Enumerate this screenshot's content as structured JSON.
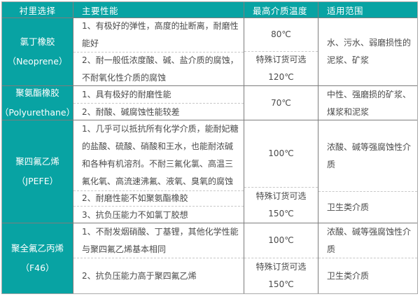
{
  "colors": {
    "accent_teal": "#08a3a3",
    "grid_line": "#7d7d7d",
    "dashed_line": "#c8c8c8",
    "body_text": "#4a4a4a"
  },
  "table": {
    "headers": [
      "衬里选择",
      "主要性能",
      "最高介质温度",
      "适用范围"
    ],
    "rows": [
      {
        "material": {
          "name": "氯丁橡胶",
          "en": "（Neoprene）"
        },
        "performance": [
          {
            "lines": [
              "1、有极好的弹性，高度的扯断离，耐磨性",
              "能好"
            ]
          },
          {
            "lines": [
              "2、耐一般低浓度酸、碱、盐介质的腐蚀，",
              "不耐氧化性介质的腐蚀"
            ]
          }
        ],
        "temperature": [
          {
            "lines": [
              "80℃"
            ]
          },
          {
            "lines": [
              "特殊订货可选",
              "120℃"
            ]
          }
        ],
        "scope": [
          {
            "lines": [
              "水、污水、弱磨损性的",
              "泥浆、矿浆"
            ]
          }
        ]
      },
      {
        "material": {
          "name": "聚氨酯橡胶",
          "en": "（Polyurethane）"
        },
        "performance": [
          {
            "lines": [
              "1、具有极好的耐磨性能"
            ]
          },
          {
            "lines": [
              "2、耐酸、碱腐蚀性能较差"
            ]
          }
        ],
        "temperature": [
          {
            "lines": [
              "70℃"
            ]
          }
        ],
        "scope": [
          {
            "lines": [
              "中性、强磨损的矿浆、",
              "煤浆和泥浆"
            ]
          }
        ]
      },
      {
        "material": {
          "name": "聚四氟乙烯",
          "en": "（JPEFE）"
        },
        "performance": [
          {
            "lines": [
              "1、几乎可以抵抗所有化学介质，能耐妃糖",
              "的盐酸、硫酸、硝酸和王水，也能耐浓碱",
              "和各种有机溶剂。不耐三氟化氯、高温三",
              "氟化氧、高流速沸氟、液氧、臭氧的腐蚀"
            ]
          },
          {
            "lines": [
              "2、耐磨性能不如聚氨酯橡胶"
            ]
          },
          {
            "lines": [
              "3、抗负压能力不如氯丁胶想"
            ]
          }
        ],
        "temperature": [
          {
            "lines": [
              "100℃"
            ]
          },
          {
            "lines": [
              "特殊订货可选",
              "150℃"
            ]
          }
        ],
        "scope": [
          {
            "lines": [
              "浓酸、碱等强腐蚀性介",
              "质"
            ]
          },
          {
            "lines": [
              "卫生类介质"
            ]
          }
        ]
      },
      {
        "material": {
          "name": "聚全氟乙丙烯",
          "en": "（F46）"
        },
        "performance": [
          {
            "lines": [
              "1、不耐发烟硝酸、丁基锂，其他化学性能",
              "与聚四氟乙烯基本相同"
            ]
          },
          {
            "lines": [
              "2、抗负压能力高于聚四氟乙烯"
            ]
          }
        ],
        "temperature": [
          {
            "lines": [
              "100℃"
            ]
          },
          {
            "lines": [
              "特殊订货可选",
              "150℃"
            ]
          }
        ],
        "scope": [
          {
            "lines": [
              "浓酸、碱等强腐蚀性介",
              "质"
            ]
          },
          {
            "lines": [
              "卫生类介质"
            ]
          }
        ]
      }
    ]
  }
}
